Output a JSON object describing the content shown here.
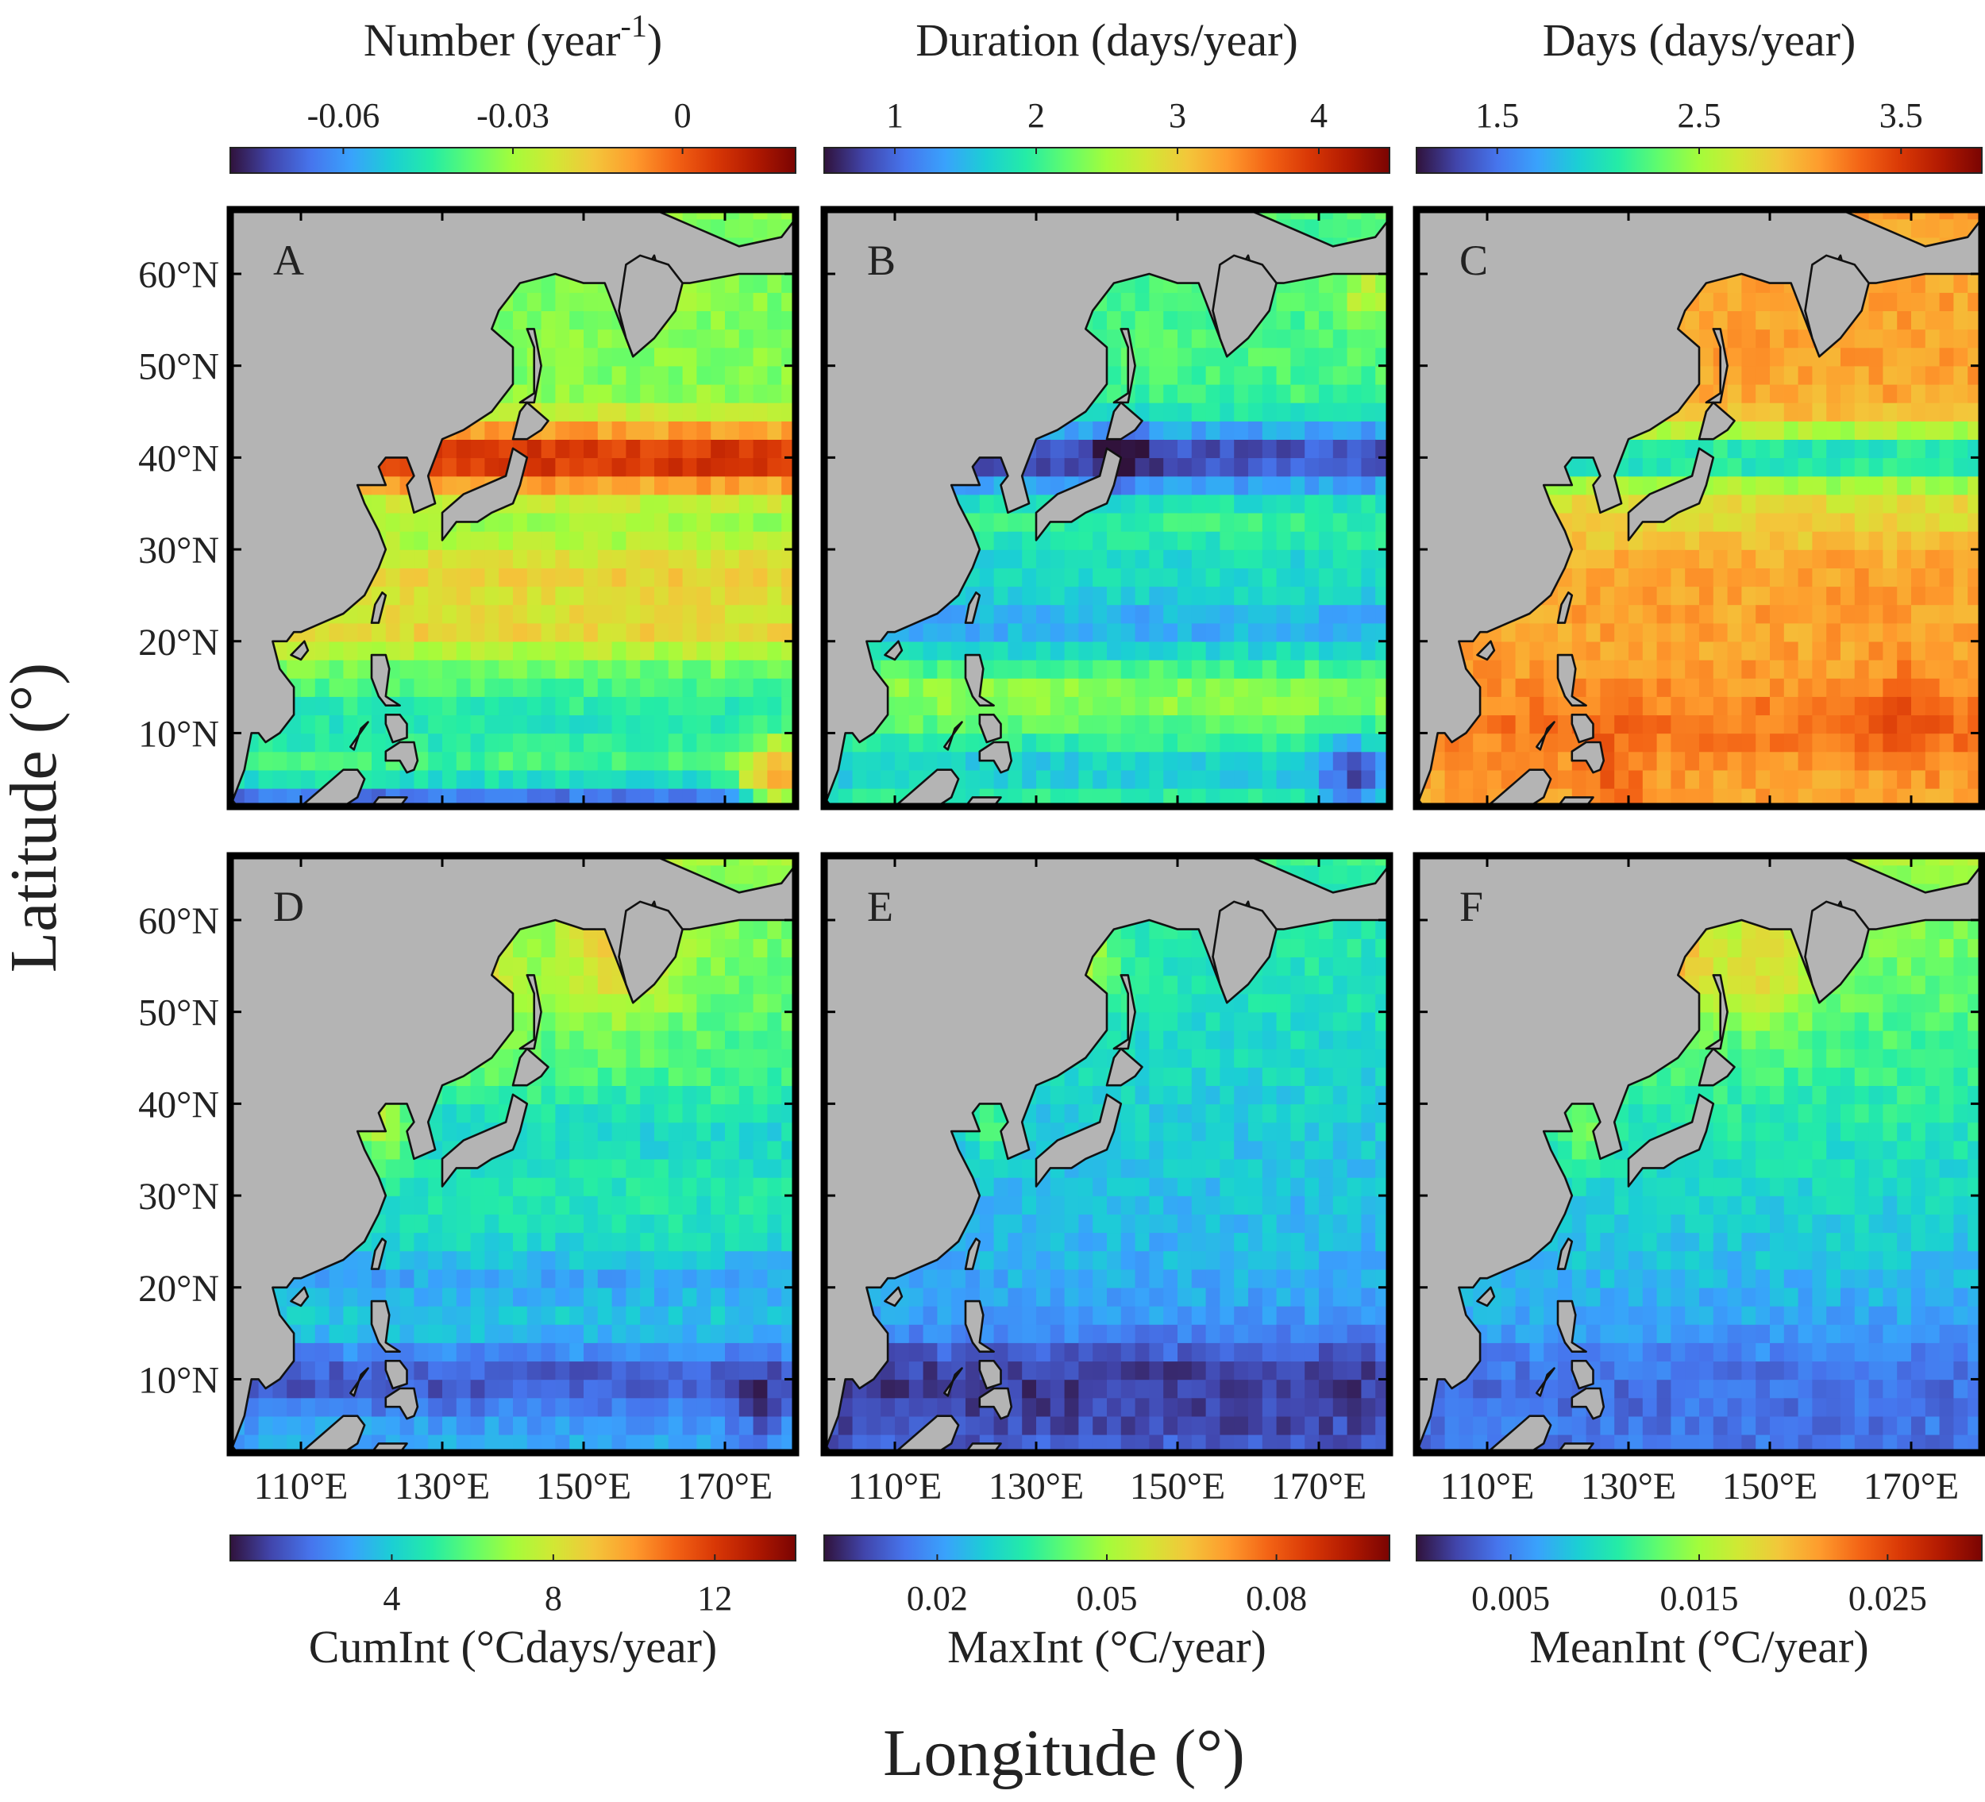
{
  "colors": {
    "land": "#b4b4b4",
    "coast": "#111111",
    "frame": "#000000",
    "turbo": [
      "#30123b",
      "#4145ab",
      "#4675ed",
      "#39a2fc",
      "#1bcfd4",
      "#24eca6",
      "#61fc6c",
      "#a4fc3b",
      "#d1e834",
      "#f3c63a",
      "#fe9b2d",
      "#f36315",
      "#d93806",
      "#b11901",
      "#7a0402"
    ]
  },
  "chart_data": {
    "type": "heatmap",
    "xlabel": "Longitude (°)",
    "ylabel": "Latitude (°)",
    "xlim": [
      100,
      180
    ],
    "ylim": [
      2,
      67
    ],
    "x_ticks": [
      "110°E",
      "130°E",
      "150°E",
      "170°E"
    ],
    "x_tick_values": [
      110,
      130,
      150,
      170
    ],
    "y_ticks": [
      "60°N",
      "50°N",
      "40°N",
      "30°N",
      "20°N",
      "10°N"
    ],
    "y_tick_values": [
      60,
      50,
      40,
      30,
      20,
      10
    ],
    "panels": [
      {
        "label": "A",
        "metric": "Number",
        "colorbar": {
          "title_main": "Number (year",
          "title_sup": "-1",
          "title_end": ")",
          "ticks": [
            "-0.06",
            "-0.03",
            "0"
          ],
          "tick_values": [
            -0.06,
            -0.03,
            0
          ],
          "range": [
            -0.08,
            0.02
          ]
        },
        "field": {
          "base": 0.46,
          "bands": [
            {
              "lat": 40,
              "width": 4,
              "amp": 0.42
            },
            {
              "lat": 27,
              "width": 4,
              "amp": 0.16
            },
            {
              "lat": 21,
              "width": 2.5,
              "amp": 0.14
            },
            {
              "lat": 11,
              "width": 5,
              "amp": -0.12
            },
            {
              "lat": 3,
              "width": 2,
              "amp": -0.3
            }
          ],
          "blobs": [
            {
              "lon": 177,
              "lat": 4,
              "r": 5,
              "amp": 0.4
            },
            {
              "lon": 160,
              "lat": 60,
              "r": 4,
              "amp": 0.2
            }
          ]
        }
      },
      {
        "label": "B",
        "metric": "Duration",
        "colorbar": {
          "title_main": "Duration (days/year)",
          "ticks": [
            "1",
            "2",
            "3",
            "4"
          ],
          "tick_values": [
            1,
            2,
            3,
            4
          ],
          "range": [
            0.5,
            4.5
          ]
        },
        "field": {
          "base": 0.4,
          "bands": [
            {
              "lat": 40,
              "width": 4,
              "amp": -0.32
            },
            {
              "lat": 22,
              "width": 4,
              "amp": -0.17
            },
            {
              "lat": 29,
              "width": 3,
              "amp": -0.08
            },
            {
              "lat": 14,
              "width": 3,
              "amp": 0.08
            },
            {
              "lat": 6,
              "width": 3,
              "amp": -0.12
            }
          ],
          "blobs": [
            {
              "lon": 142,
              "lat": 40,
              "r": 4,
              "amp": -0.15
            },
            {
              "lon": 175,
              "lat": 5,
              "r": 5,
              "amp": -0.2
            },
            {
              "lon": 177,
              "lat": 58,
              "r": 4,
              "amp": 0.15
            }
          ]
        }
      },
      {
        "label": "C",
        "metric": "Days",
        "colorbar": {
          "title_main": "Days (days/year)",
          "ticks": [
            "1.5",
            "2.5",
            "3.5"
          ],
          "tick_values": [
            1.5,
            2.5,
            3.5
          ],
          "range": [
            1.1,
            3.9
          ]
        },
        "field": {
          "base": 0.7,
          "bands": [
            {
              "lat": 40,
              "width": 3.5,
              "amp": -0.38
            },
            {
              "lat": 33,
              "width": 3,
              "amp": -0.08
            },
            {
              "lat": 11,
              "width": 4,
              "amp": 0.06
            }
          ],
          "blobs": [
            {
              "lon": 128,
              "lat": 5,
              "r": 5,
              "amp": 0.08
            },
            {
              "lon": 170,
              "lat": 12,
              "r": 6,
              "amp": 0.07
            }
          ]
        }
      },
      {
        "label": "D",
        "metric": "CumInt",
        "colorbar": {
          "title_main": "CumInt (°Cdays/year)",
          "ticks": [
            "4",
            "8",
            "12"
          ],
          "tick_values": [
            4,
            8,
            12
          ],
          "range": [
            0,
            14
          ]
        },
        "field": {
          "base": 0.34,
          "bands": [
            {
              "lat": 10,
              "width": 4,
              "amp": -0.16
            },
            {
              "lat": 21,
              "width": 3,
              "amp": -0.08
            },
            {
              "lat": 37,
              "width": 4,
              "amp": -0.06
            }
          ],
          "blobs": [
            {
              "lon": 175,
              "lat": 6,
              "r": 4,
              "amp": -0.1
            },
            {
              "lon": 155,
              "lat": 57,
              "r": 8,
              "amp": 0.2
            },
            {
              "lon": 135,
              "lat": 52,
              "r": 6,
              "amp": 0.24
            },
            {
              "lon": 121,
              "lat": 38,
              "r": 4,
              "amp": 0.26
            }
          ],
          "north_gradient": 0.004
        }
      },
      {
        "label": "E",
        "metric": "MaxInt",
        "colorbar": {
          "title_main": "MaxInt (°C/year)",
          "ticks": [
            "0.02",
            "0.05",
            "0.08"
          ],
          "tick_values": [
            0.02,
            0.05,
            0.08
          ],
          "range": [
            0,
            0.1
          ]
        },
        "field": {
          "base": 0.26,
          "bands": [
            {
              "lat": 10,
              "width": 5,
              "amp": -0.14
            },
            {
              "lat": 4,
              "width": 3,
              "amp": -0.06
            }
          ],
          "blobs": [
            {
              "lon": 135,
              "lat": 55,
              "r": 6,
              "amp": 0.24
            },
            {
              "lon": 123,
              "lat": 38,
              "r": 3,
              "amp": 0.16
            }
          ],
          "north_gradient": 0.003
        }
      },
      {
        "label": "F",
        "metric": "MeanInt",
        "colorbar": {
          "title_main": "MeanInt (°C/year)",
          "ticks": [
            "0.005",
            "0.015",
            "0.025"
          ],
          "tick_values": [
            0.005,
            0.015,
            0.025
          ],
          "range": [
            0,
            0.03
          ]
        },
        "field": {
          "base": 0.3,
          "bands": [
            {
              "lat": 10,
              "width": 5,
              "amp": -0.05
            }
          ],
          "blobs": [
            {
              "lon": 135,
              "lat": 55,
              "r": 7,
              "amp": 0.28
            },
            {
              "lon": 150,
              "lat": 55,
              "r": 7,
              "amp": 0.16
            },
            {
              "lon": 123,
              "lat": 38,
              "r": 4,
              "amp": 0.12
            }
          ],
          "north_gradient": 0.0055
        }
      }
    ]
  }
}
